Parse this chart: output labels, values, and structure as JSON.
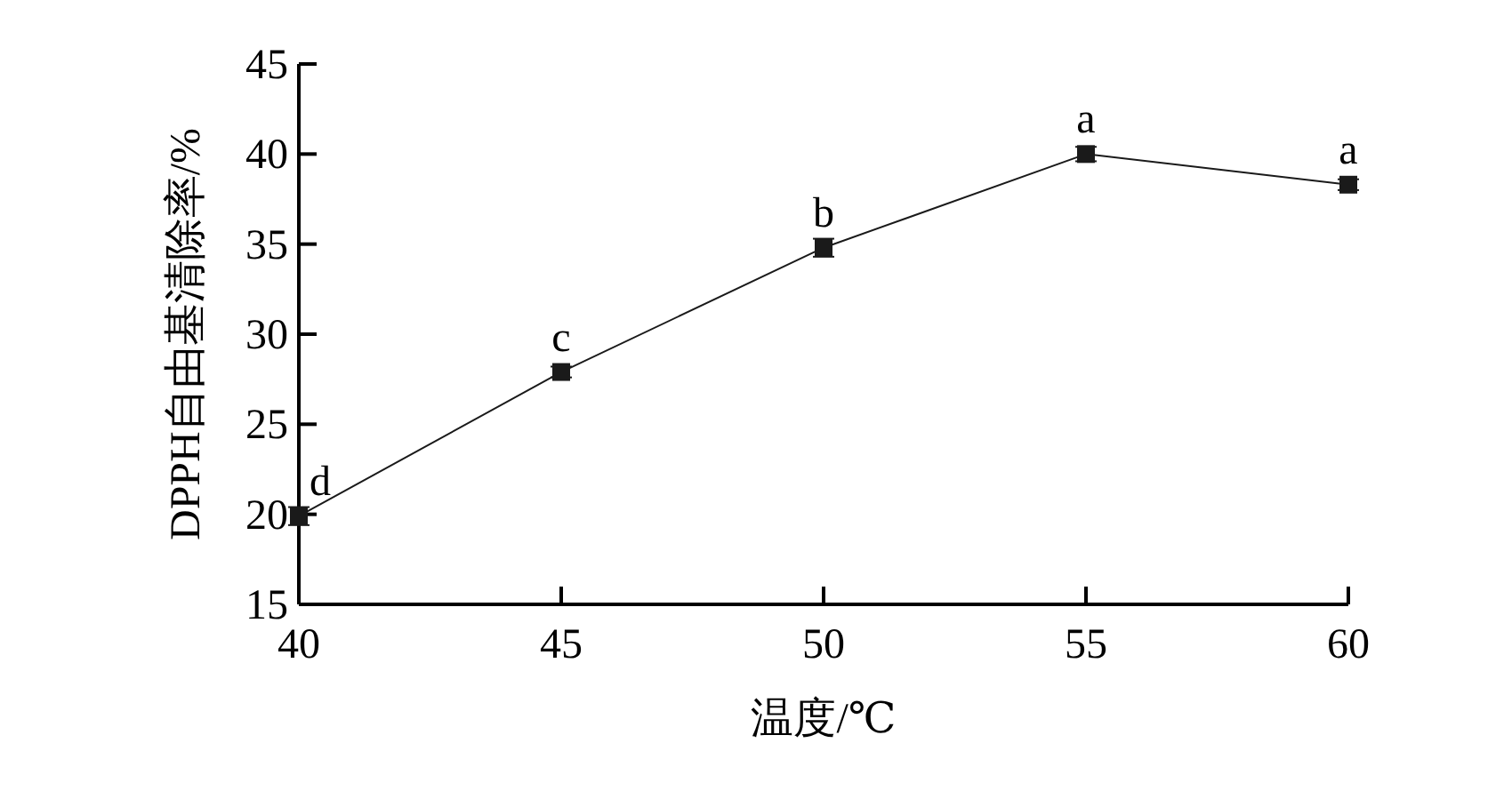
{
  "chart_data": {
    "type": "line",
    "xlabel": "温度/℃",
    "ylabel": "DPPH自由基清除率/%",
    "x": [
      40,
      45,
      50,
      55,
      60
    ],
    "series": [
      {
        "color": "#1a1a1a",
        "values": [
          19.9,
          27.9,
          34.8,
          40.0,
          38.3
        ],
        "errors": [
          0.5,
          0.3,
          0.5,
          0.4,
          0.3
        ]
      }
    ],
    "xlim": [
      40,
      60
    ],
    "xticks": [
      40,
      45,
      50,
      55,
      60
    ],
    "ylim": [
      15,
      45
    ],
    "yticks": [
      15,
      20,
      25,
      30,
      35,
      40,
      45
    ],
    "marker": "square",
    "line_style": "solid",
    "grid": false,
    "annotations": [
      {
        "text": "d",
        "x": 40,
        "y": 19.9
      },
      {
        "text": "c",
        "x": 45,
        "y": 27.9
      },
      {
        "text": "b",
        "x": 50,
        "y": 34.8
      },
      {
        "text": "a",
        "x": 55,
        "y": 40.0
      },
      {
        "text": "a",
        "x": 60,
        "y": 38.3
      }
    ]
  }
}
